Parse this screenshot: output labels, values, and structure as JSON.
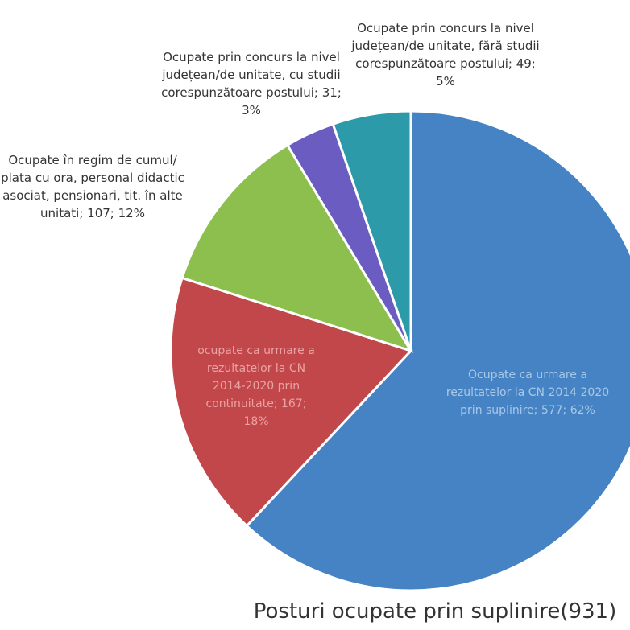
{
  "chart_data": {
    "type": "pie",
    "title": "Posturi ocupate prin suplinire(931)",
    "values": [
      577,
      167,
      107,
      31,
      49
    ],
    "value_labels": [
      "Ocupate ca urmare a rezultatelor la CN 2014 2020 prin suplinire; 577; 62%",
      "ocupate ca urmare a rezultatelor la CN 2014-2020 prin continuitate; 167; 18%",
      "Ocupate în regim de cumul/ plata cu ora, personal didactic asociat, pensionari, tit. în alte unitati; 107; 12%",
      "Ocupate prin concurs la nivel județean/de unitate, cu studii corespunzătoare postului; 31; 3%",
      "Ocupate prin concurs la nivel județean/de unitate, fără studii corespunzătoare postului; 49; 5%"
    ],
    "colors": [
      "#4683c4",
      "#c2474b",
      "#8dbf4e",
      "#6b5cc2",
      "#2c9aa8"
    ]
  }
}
